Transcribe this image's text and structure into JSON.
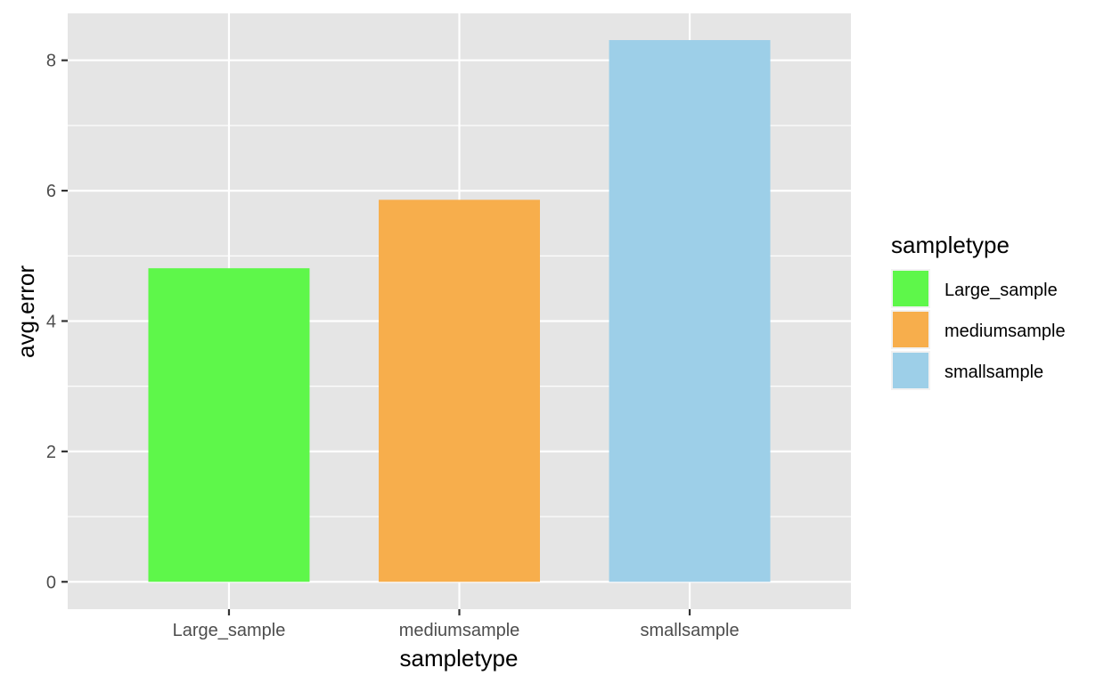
{
  "chart_data": {
    "type": "bar",
    "title": "",
    "xlabel": "sampletype",
    "ylabel": "avg.error",
    "categories": [
      "Large_sample",
      "mediumsample",
      "smallsample"
    ],
    "values": [
      4.81,
      5.86,
      8.31
    ],
    "ylim": [
      -0.42,
      8.72
    ],
    "yticks": [
      0,
      2,
      4,
      6,
      8
    ],
    "grid": true,
    "legend": {
      "title": "sampletype",
      "position": "right",
      "entries": [
        "Large_sample",
        "mediumsample",
        "smallsample"
      ]
    },
    "colors": [
      "#5ef74a",
      "#f7ae4c",
      "#9dcfe8"
    ],
    "panel_background": "#e5e5e5",
    "gridline_color": "#ffffff"
  }
}
